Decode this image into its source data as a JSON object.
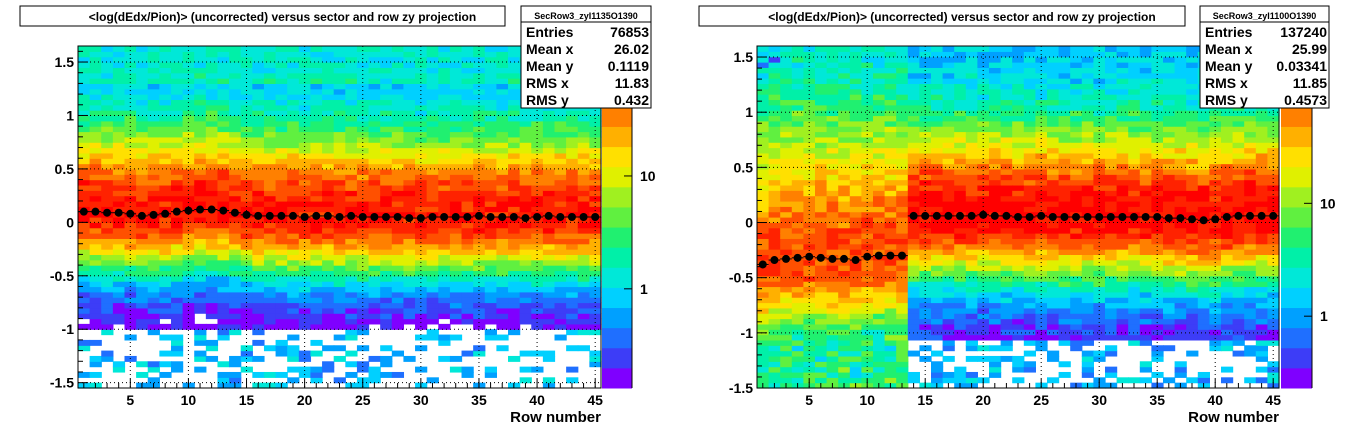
{
  "palette": [
    "#ffffff",
    "#7f00ff",
    "#3d3df7",
    "#1f6fff",
    "#00a0ff",
    "#00d0ff",
    "#00e8d8",
    "#00f0a8",
    "#20f070",
    "#60f040",
    "#a0f020",
    "#e0f000",
    "#ffe000",
    "#ffb000",
    "#ff8000",
    "#ff5000",
    "#ff2200",
    "#ff0000"
  ],
  "panels": [
    {
      "title": "<log(dEdx/Pion)> (uncorrected) versus sector and row zy projection",
      "stats": {
        "name": "SecRow3_zyI1135O1390",
        "rows": [
          {
            "label": "Entries",
            "value": "76853"
          },
          {
            "label": "Mean x",
            "value": "26.02"
          },
          {
            "label": "Mean y",
            "value": "0.1119"
          },
          {
            "label": "RMS x",
            "value": "11.83"
          },
          {
            "label": "RMS y",
            "value": "0.432"
          }
        ]
      },
      "palette_labels": [
        "10",
        "1"
      ],
      "chart_data": {
        "type": "heatmap",
        "title": "<log(dEdx/Pion)> (uncorrected) versus sector and row zy projection",
        "xlabel": "Row number",
        "ylabel": "",
        "xlim": [
          0.5,
          45.5
        ],
        "ylim": [
          -1.55,
          1.65
        ],
        "xticks": [
          5,
          10,
          15,
          20,
          25,
          30,
          35,
          40,
          45
        ],
        "yticks": [
          -1.5,
          -1,
          -0.5,
          0,
          0.5,
          1,
          1.5
        ],
        "ytick_labels": [
          "-1.5",
          "-1",
          "-0.5",
          "0",
          "0.5",
          "1",
          "1.5"
        ],
        "zscale": "log",
        "grid": true,
        "profile": {
          "x": [
            1,
            2,
            3,
            4,
            5,
            6,
            7,
            8,
            9,
            10,
            11,
            12,
            13,
            14,
            15,
            16,
            17,
            18,
            19,
            20,
            21,
            22,
            23,
            24,
            25,
            26,
            27,
            28,
            29,
            30,
            31,
            32,
            33,
            34,
            35,
            36,
            37,
            38,
            39,
            40,
            41,
            42,
            43,
            44,
            45
          ],
          "y": [
            0.1,
            0.1,
            0.09,
            0.09,
            0.08,
            0.06,
            0.07,
            0.08,
            0.1,
            0.11,
            0.12,
            0.12,
            0.11,
            0.09,
            0.07,
            0.06,
            0.06,
            0.06,
            0.06,
            0.05,
            0.06,
            0.06,
            0.05,
            0.06,
            0.05,
            0.05,
            0.05,
            0.05,
            0.04,
            0.04,
            0.05,
            0.05,
            0.05,
            0.05,
            0.06,
            0.05,
            0.05,
            0.05,
            0.04,
            0.05,
            0.06,
            0.05,
            0.05,
            0.05,
            0.05
          ]
        }
      }
    },
    {
      "title": "<log(dEdx/Pion)> (uncorrected) versus sector and row zy projection",
      "stats": {
        "name": "SecRow3_zyI1100O1390",
        "rows": [
          {
            "label": "Entries",
            "value": "137240"
          },
          {
            "label": "Mean x",
            "value": "25.99"
          },
          {
            "label": "Mean y",
            "value": "0.03341"
          },
          {
            "label": "RMS x",
            "value": "11.85"
          },
          {
            "label": "RMS y",
            "value": "0.4573"
          }
        ]
      },
      "palette_labels": [
        "10",
        "1"
      ],
      "chart_data": {
        "type": "heatmap",
        "title": "<log(dEdx/Pion)> (uncorrected) versus sector and row zy projection",
        "xlabel": "Row number",
        "ylabel": "",
        "xlim": [
          0.5,
          45.5
        ],
        "ylim": [
          -1.5,
          1.6
        ],
        "xticks": [
          5,
          10,
          15,
          20,
          25,
          30,
          35,
          40,
          45
        ],
        "yticks": [
          -1.5,
          -1,
          -0.5,
          0,
          0.5,
          1,
          1.5
        ],
        "ytick_labels": [
          "-1.5",
          "-1",
          "-0.5",
          "0",
          "0.5",
          "1",
          "1.5"
        ],
        "zscale": "log",
        "grid": true,
        "profile": {
          "x": [
            1,
            2,
            3,
            4,
            5,
            6,
            7,
            8,
            9,
            10,
            11,
            12,
            13,
            14,
            15,
            16,
            17,
            18,
            19,
            20,
            21,
            22,
            23,
            24,
            25,
            26,
            27,
            28,
            29,
            30,
            31,
            32,
            33,
            34,
            35,
            36,
            37,
            38,
            39,
            40,
            41,
            42,
            43,
            44,
            45
          ],
          "y": [
            -0.38,
            -0.34,
            -0.33,
            -0.32,
            -0.31,
            -0.32,
            -0.33,
            -0.33,
            -0.34,
            -0.31,
            -0.3,
            -0.3,
            -0.3,
            0.06,
            0.06,
            0.06,
            0.06,
            0.06,
            0.06,
            0.07,
            0.06,
            0.06,
            0.05,
            0.05,
            0.06,
            0.05,
            0.05,
            0.05,
            0.05,
            0.05,
            0.05,
            0.05,
            0.05,
            0.05,
            0.05,
            0.04,
            0.04,
            0.03,
            0.02,
            0.03,
            0.05,
            0.06,
            0.06,
            0.06,
            0.06
          ]
        }
      }
    }
  ]
}
